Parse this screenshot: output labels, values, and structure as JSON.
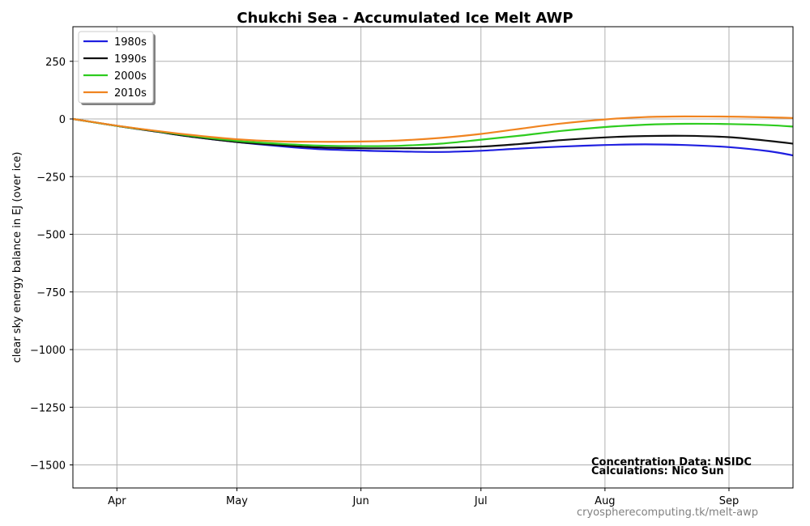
{
  "chart_data": {
    "type": "line",
    "title": "Chukchi Sea - Accumulated Ice Melt AWP",
    "xlabel": "",
    "ylabel": "clear sky energy balance in  EJ (over ice)",
    "x_ticks": [
      "Apr",
      "May",
      "Jun",
      "Jul",
      "Aug",
      "Sep"
    ],
    "x_tick_days": [
      91,
      121,
      152,
      182,
      213,
      244
    ],
    "xlim": [
      80,
      260
    ],
    "ylim": [
      -1600,
      400
    ],
    "y_ticks": [
      250,
      0,
      -250,
      -500,
      -750,
      -1000,
      -1250,
      -1500
    ],
    "y_tick_labels": [
      "250",
      "0",
      "−250",
      "−500",
      "−750",
      "−1000",
      "−1250",
      "−1500"
    ],
    "grid": true,
    "legend_position": "top-left",
    "x": [
      80,
      91,
      101,
      111,
      121,
      131,
      141,
      152,
      162,
      172,
      182,
      192,
      202,
      213,
      223,
      233,
      244,
      254,
      260
    ],
    "series": [
      {
        "name": "1980s",
        "color": "#1f1fe0",
        "values": [
          0,
          -30,
          -55,
          -80,
          -100,
          -117,
          -130,
          -137,
          -141,
          -143,
          -138,
          -128,
          -120,
          -113,
          -110,
          -113,
          -122,
          -140,
          -158
        ]
      },
      {
        "name": "1990s",
        "color": "#111111",
        "values": [
          0,
          -30,
          -55,
          -80,
          -100,
          -113,
          -123,
          -127,
          -127,
          -125,
          -120,
          -108,
          -92,
          -80,
          -74,
          -73,
          -79,
          -95,
          -107
        ]
      },
      {
        "name": "2000s",
        "color": "#2ecc1f",
        "values": [
          0,
          -30,
          -53,
          -76,
          -95,
          -107,
          -115,
          -118,
          -116,
          -107,
          -90,
          -72,
          -52,
          -35,
          -25,
          -21,
          -22,
          -27,
          -33
        ]
      },
      {
        "name": "2010s",
        "color": "#f08420",
        "values": [
          0,
          -29,
          -52,
          -72,
          -88,
          -97,
          -99,
          -98,
          -93,
          -82,
          -65,
          -42,
          -20,
          -2,
          8,
          11,
          10,
          7,
          4
        ]
      }
    ],
    "annotations": [
      "Concentration Data: NSIDC",
      "Calculations: Nico Sun"
    ],
    "source": "cryospherecomputing.tk/melt-awp"
  }
}
